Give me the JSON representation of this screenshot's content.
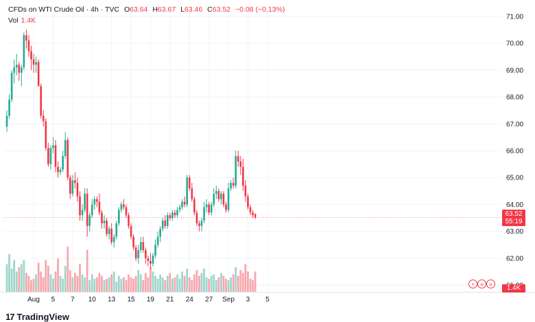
{
  "legend": {
    "symbol": "CFDs on WTI Crude Oil · 4h · TVC",
    "open_label": "O",
    "open": "63.64",
    "high_label": "H",
    "high": "63.67",
    "low_label": "L",
    "low": "63.46",
    "close_label": "C",
    "close": "63.52",
    "change": "−0.08 (−0.13%)",
    "vol_label": "Vol",
    "vol_value": "1.4K"
  },
  "price_tag": {
    "price": "63.52",
    "countdown": "55:19"
  },
  "volume_tag": "1.4K",
  "logo": "TradingView",
  "events": [
    {
      "icon": "lightning-icon",
      "glyph": "⚡"
    },
    {
      "icon": "us-flag-icon",
      "glyph": "≡"
    },
    {
      "icon": "us-flag-icon",
      "glyph": "≡"
    }
  ],
  "colors": {
    "up": "#22ab94",
    "down": "#f23645",
    "up_vol": "#9fd6cb",
    "down_vol": "#f7a7ad",
    "grid": "#f0f3fa"
  },
  "chart_data": {
    "type": "candlestick",
    "ylim": [
      60.75,
      71.25
    ],
    "price_scale": [
      "71.00",
      "70.00",
      "69.00",
      "68.00",
      "67.00",
      "66.00",
      "65.00",
      "64.00",
      "63.00",
      "62.00",
      "61.00"
    ],
    "price_scale_values": [
      71,
      70,
      69,
      68,
      67,
      66,
      65,
      64,
      63,
      62,
      61
    ],
    "x_ticks": [
      "Aug",
      "5",
      "7",
      "10",
      "13",
      "15",
      "19",
      "21",
      "24",
      "27",
      "Sep",
      "3",
      "5"
    ],
    "x_tick_bars": [
      11,
      19,
      27,
      35,
      43,
      51,
      59,
      67,
      75,
      83,
      91,
      99,
      107
    ],
    "candles": [
      [
        66.9,
        67.5,
        66.7,
        67.3
      ],
      [
        67.3,
        68.1,
        67.2,
        67.9
      ],
      [
        67.9,
        69.0,
        67.8,
        68.9
      ],
      [
        68.9,
        69.4,
        68.5,
        69.1
      ],
      [
        69.1,
        69.6,
        68.8,
        69.2
      ],
      [
        69.2,
        69.3,
        68.6,
        68.9
      ],
      [
        68.9,
        69.2,
        68.4,
        69.1
      ],
      [
        69.1,
        70.4,
        69.0,
        70.3
      ],
      [
        70.3,
        70.5,
        69.8,
        70.1
      ],
      [
        70.1,
        70.3,
        69.5,
        69.7
      ],
      [
        69.7,
        69.9,
        69.0,
        69.4
      ],
      [
        69.4,
        69.6,
        68.9,
        69.2
      ],
      [
        69.2,
        69.5,
        68.9,
        69.3
      ],
      [
        69.3,
        69.4,
        68.4,
        68.4
      ],
      [
        68.4,
        68.5,
        67.2,
        67.3
      ],
      [
        67.3,
        67.5,
        66.9,
        67.1
      ],
      [
        67.1,
        67.2,
        66.0,
        66.1
      ],
      [
        66.1,
        66.3,
        65.4,
        65.5
      ],
      [
        65.5,
        66.2,
        65.3,
        66.1
      ],
      [
        66.1,
        66.5,
        65.9,
        66.2
      ],
      [
        66.2,
        66.4,
        65.2,
        65.4
      ],
      [
        65.4,
        65.6,
        65.0,
        65.2
      ],
      [
        65.2,
        65.4,
        65.1,
        65.3
      ],
      [
        65.3,
        66.0,
        65.2,
        65.8
      ],
      [
        65.8,
        66.7,
        65.7,
        66.4
      ],
      [
        66.4,
        66.5,
        64.9,
        65.0
      ],
      [
        65.0,
        65.1,
        64.2,
        64.4
      ],
      [
        64.4,
        65.1,
        64.3,
        64.9
      ],
      [
        64.9,
        65.2,
        64.6,
        64.8
      ],
      [
        64.8,
        65.0,
        64.1,
        64.3
      ],
      [
        64.3,
        64.5,
        63.4,
        63.6
      ],
      [
        63.6,
        64.0,
        63.4,
        63.8
      ],
      [
        63.8,
        64.6,
        63.7,
        64.4
      ],
      [
        64.4,
        64.6,
        62.8,
        63.2
      ],
      [
        63.2,
        63.7,
        63.0,
        63.6
      ],
      [
        63.6,
        64.2,
        63.5,
        64.0
      ],
      [
        64.0,
        64.3,
        63.8,
        64.2
      ],
      [
        64.2,
        64.3,
        63.9,
        64.1
      ],
      [
        64.1,
        64.4,
        63.6,
        63.7
      ],
      [
        63.7,
        63.8,
        63.1,
        63.3
      ],
      [
        63.3,
        63.6,
        63.1,
        63.4
      ],
      [
        63.4,
        63.5,
        62.8,
        62.9
      ],
      [
        62.9,
        63.2,
        62.7,
        63.1
      ],
      [
        63.1,
        63.3,
        62.5,
        62.6
      ],
      [
        62.6,
        62.9,
        62.4,
        62.8
      ],
      [
        62.8,
        63.4,
        62.7,
        63.3
      ],
      [
        63.3,
        63.9,
        63.2,
        63.8
      ],
      [
        63.8,
        64.1,
        63.7,
        64.0
      ],
      [
        64.0,
        64.2,
        63.8,
        63.9
      ],
      [
        63.9,
        64.0,
        63.5,
        63.6
      ],
      [
        63.6,
        63.7,
        63.1,
        63.2
      ],
      [
        63.2,
        63.3,
        62.7,
        62.8
      ],
      [
        62.8,
        62.9,
        62.3,
        62.4
      ],
      [
        62.4,
        62.5,
        61.9,
        62.0
      ],
      [
        62.0,
        62.5,
        61.8,
        62.3
      ],
      [
        62.3,
        62.8,
        62.2,
        62.6
      ],
      [
        62.6,
        62.8,
        62.2,
        62.3
      ],
      [
        62.3,
        62.4,
        61.8,
        62.0
      ],
      [
        62.0,
        62.1,
        61.7,
        61.9
      ],
      [
        61.9,
        62.2,
        61.6,
        61.8
      ],
      [
        61.8,
        62.2,
        61.7,
        62.1
      ],
      [
        62.1,
        62.7,
        62.0,
        62.5
      ],
      [
        62.5,
        63.0,
        62.4,
        62.8
      ],
      [
        62.8,
        63.2,
        62.6,
        63.1
      ],
      [
        63.1,
        63.5,
        63.0,
        63.4
      ],
      [
        63.4,
        63.6,
        63.1,
        63.2
      ],
      [
        63.2,
        63.7,
        63.1,
        63.6
      ],
      [
        63.6,
        63.7,
        63.4,
        63.5
      ],
      [
        63.5,
        63.8,
        63.4,
        63.7
      ],
      [
        63.7,
        63.8,
        63.5,
        63.6
      ],
      [
        63.6,
        63.9,
        63.5,
        63.8
      ],
      [
        63.8,
        64.0,
        63.7,
        63.9
      ],
      [
        63.9,
        64.2,
        63.8,
        64.1
      ],
      [
        64.1,
        64.3,
        63.9,
        64.0
      ],
      [
        64.0,
        65.1,
        63.9,
        65.0
      ],
      [
        65.0,
        65.1,
        64.5,
        64.6
      ],
      [
        64.6,
        64.8,
        64.1,
        64.2
      ],
      [
        64.2,
        64.3,
        63.6,
        63.7
      ],
      [
        63.7,
        63.8,
        63.2,
        63.3
      ],
      [
        63.3,
        63.4,
        63.0,
        63.2
      ],
      [
        63.2,
        63.5,
        63.0,
        63.4
      ],
      [
        63.4,
        64.1,
        63.3,
        63.9
      ],
      [
        63.9,
        64.2,
        63.7,
        64.0
      ],
      [
        64.0,
        64.1,
        63.6,
        63.7
      ],
      [
        63.7,
        64.1,
        63.6,
        64.0
      ],
      [
        64.0,
        64.6,
        63.9,
        64.4
      ],
      [
        64.4,
        64.7,
        64.2,
        64.5
      ],
      [
        64.5,
        64.6,
        64.1,
        64.2
      ],
      [
        64.2,
        64.5,
        64.0,
        64.4
      ],
      [
        64.4,
        64.5,
        63.9,
        64.0
      ],
      [
        64.0,
        64.1,
        63.7,
        63.8
      ],
      [
        63.8,
        64.8,
        63.7,
        64.6
      ],
      [
        64.6,
        64.9,
        64.5,
        64.8
      ],
      [
        64.8,
        65.0,
        64.6,
        64.7
      ],
      [
        64.7,
        66.0,
        64.6,
        65.8
      ],
      [
        65.8,
        66.0,
        65.4,
        65.6
      ],
      [
        65.6,
        65.8,
        65.1,
        65.4
      ],
      [
        65.4,
        65.7,
        64.5,
        64.7
      ],
      [
        64.7,
        64.9,
        64.1,
        64.3
      ],
      [
        64.3,
        64.4,
        63.8,
        63.9
      ],
      [
        63.9,
        64.0,
        63.6,
        63.7
      ],
      [
        63.7,
        63.8,
        63.5,
        63.6
      ],
      [
        63.64,
        63.67,
        63.46,
        63.52
      ]
    ],
    "volume": [
      1.9,
      2.6,
      1.6,
      2.2,
      1.4,
      1.7,
      1.9,
      2.2,
      1.3,
      1.1,
      0.8,
      0.9,
      1.2,
      2.0,
      1.4,
      1.0,
      2.2,
      1.8,
      1.2,
      0.9,
      1.4,
      2.3,
      1.1,
      0.9,
      1.8,
      3.1,
      1.5,
      1.0,
      1.3,
      1.1,
      1.9,
      1.2,
      1.0,
      2.9,
      0.8,
      1.2,
      0.9,
      1.0,
      1.3,
      1.1,
      0.8,
      0.9,
      1.0,
      1.2,
      1.4,
      0.7,
      1.1,
      0.9,
      1.0,
      0.8,
      1.2,
      1.0,
      0.9,
      1.1,
      1.5,
      1.2,
      0.8,
      1.3,
      1.0,
      1.7,
      1.4,
      1.1,
      0.9,
      1.2,
      1.0,
      0.8,
      1.1,
      1.3,
      0.9,
      1.0,
      1.2,
      0.9,
      1.4,
      1.1,
      1.6,
      1.0,
      0.8,
      1.2,
      1.5,
      1.1,
      1.3,
      1.6,
      1.0,
      0.9,
      1.1,
      1.2,
      0.8,
      1.0,
      1.3,
      1.1,
      0.9,
      0.8,
      1.0,
      1.2,
      1.7,
      1.1,
      1.5,
      1.3,
      1.9,
      1.4,
      0.9,
      0.8,
      1.4
    ]
  }
}
